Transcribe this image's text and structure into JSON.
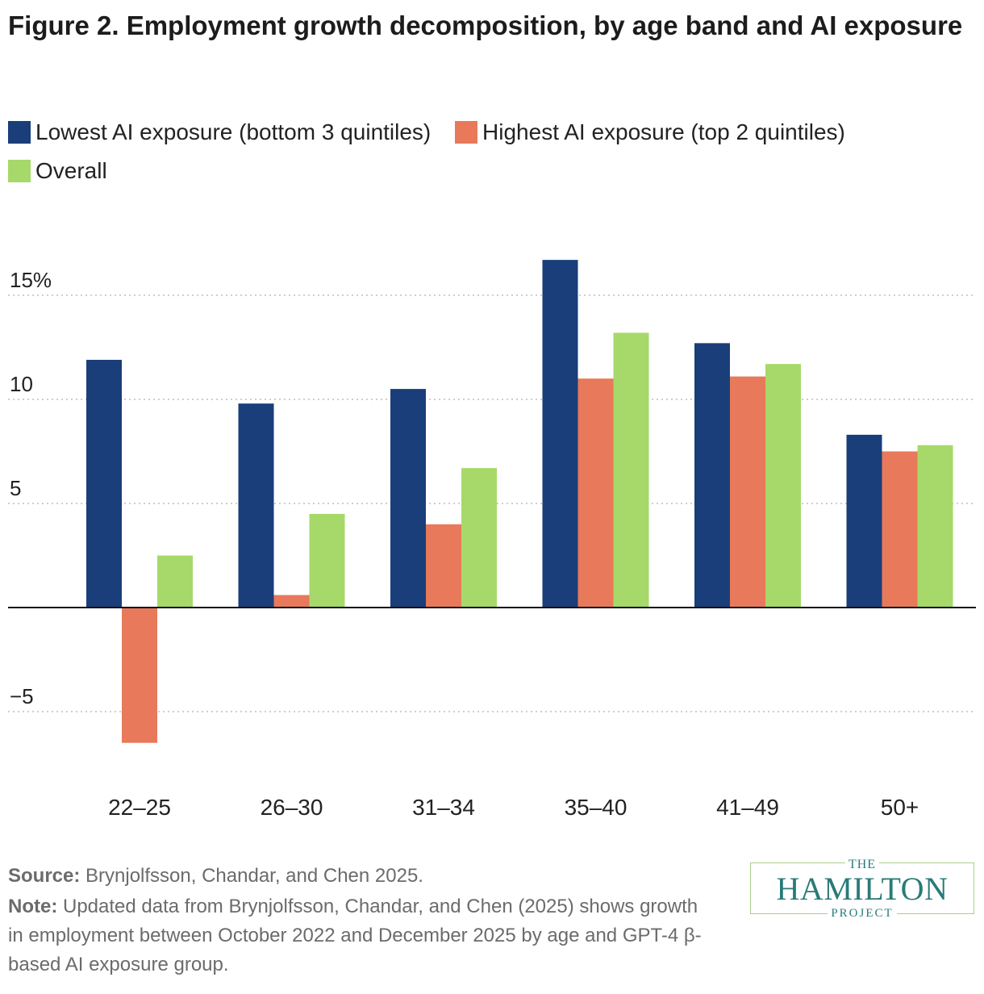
{
  "page": {
    "source_label": "Source:",
    "source_text": "Brynjolfsson, Chandar, and Chen 2025.",
    "note_label": "Note:",
    "note_text": "Updated data from Brynjolfsson, Chandar, and Chen (2025) shows growth in employment between October 2022 and December 2025 by age and GPT-4 β-based AI exposure group.",
    "logo": {
      "the": "THE",
      "name": "HAMILTON",
      "project": "PROJECT"
    }
  },
  "chart_data": {
    "type": "bar",
    "title": "Figure 2. Employment growth decomposition, by age band and AI exposure",
    "categories": [
      "22–25",
      "26–30",
      "31–34",
      "35–40",
      "41–49",
      "50+"
    ],
    "series": [
      {
        "name": "Lowest AI exposure (bottom 3 quintiles)",
        "color": "#1a3e7a",
        "values": [
          11.9,
          9.8,
          10.5,
          16.7,
          12.7,
          8.3
        ]
      },
      {
        "name": "Highest AI exposure (top 2 quintiles)",
        "color": "#e8795a",
        "values": [
          -6.5,
          0.6,
          4.0,
          11.0,
          11.1,
          7.5
        ]
      },
      {
        "name": "Overall",
        "color": "#a6d96a",
        "values": [
          2.5,
          4.5,
          6.7,
          13.2,
          11.7,
          7.8
        ]
      }
    ],
    "yticks": [
      {
        "value": -5,
        "label": "−5"
      },
      {
        "value": 5,
        "label": "5"
      },
      {
        "value": 10,
        "label": "10"
      },
      {
        "value": 15,
        "label": "15%"
      }
    ],
    "ylim": [
      -7.5,
      18.5
    ],
    "grid": true,
    "legend": "top-left"
  }
}
